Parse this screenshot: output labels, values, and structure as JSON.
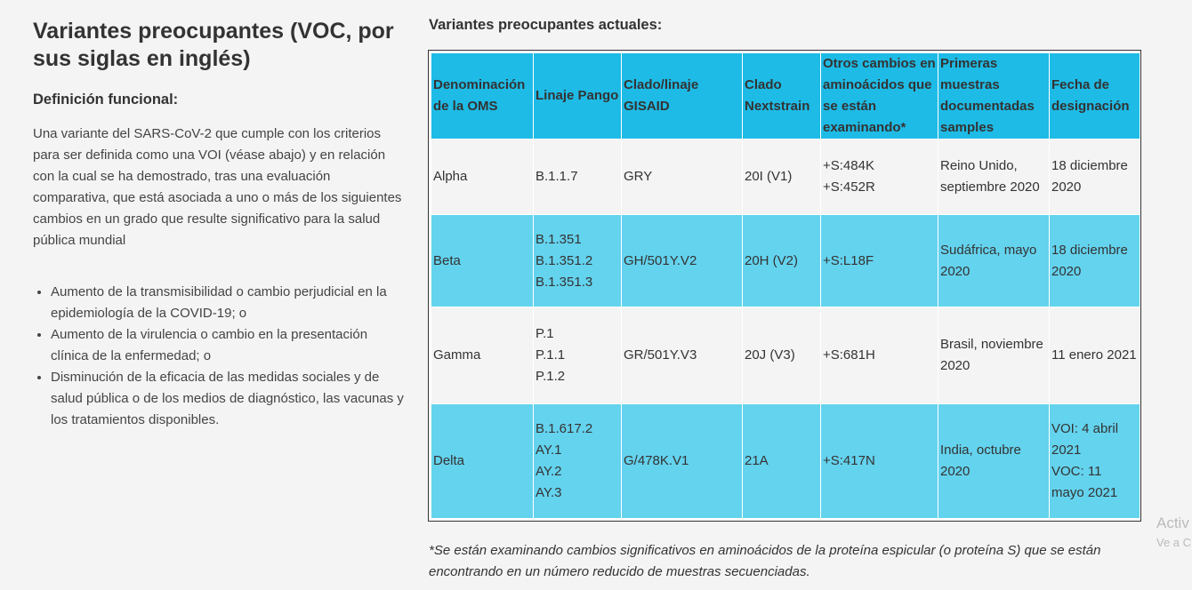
{
  "left": {
    "heading_line1": "Variantes preocupantes (VOC, por",
    "heading_line2": "sus siglas en inglés)",
    "subheading": "Definición funcional:",
    "paragraph": "Una variante del SARS-CoV-2 que cumple con los criterios para ser definida como una VOI (véase abajo) y en relación con la cual se ha demostrado, tras una evaluación comparativa, que está asociada a uno o más de los siguientes cambios en un grado que resulte significativo para la salud pública mundial",
    "bullets": [
      "Aumento de la transmisibilidad o cambio perjudicial en la epidemiología de la COVID-19; o",
      "Aumento de la virulencia o cambio en la presentación clínica de la enfermedad; o",
      "Disminución de la eficacia de las medidas sociales y de salud pública o de los medios de diagnóstico, las vacunas y los tratamientos disponibles."
    ]
  },
  "right": {
    "title": "Variantes preocupantes actuales:",
    "headers": [
      "Denominación de la OMS",
      "Linaje Pango",
      "Clado/linaje GISAID",
      "Clado Nextstrain",
      "Otros cambios en aminoácidos que se están examinando*",
      "Primeras muestras documentadas samples",
      "Fecha de designación"
    ],
    "rows": [
      {
        "name": "Alpha",
        "pango": "B.1.1.7",
        "gisaid": "GRY",
        "nextstrain": "20I (V1)",
        "changes": "+S:484K\n+S:452R",
        "samples": "Reino Unido, septiembre 2020",
        "date": "18 diciembre 2020"
      },
      {
        "name": "Beta",
        "pango": "B.1.351\nB.1.351.2\nB.1.351.3",
        "gisaid": "GH/501Y.V2",
        "nextstrain": "20H (V2)",
        "changes": "+S:L18F",
        "samples": "Sudáfrica, mayo 2020",
        "date": "18 diciembre 2020"
      },
      {
        "name": "Gamma",
        "pango": "P.1\nP.1.1\nP.1.2",
        "gisaid": "GR/501Y.V3",
        "nextstrain": "20J (V3)",
        "changes": "+S:681H",
        "samples": "Brasil, noviembre 2020",
        "date": "11 enero 2021"
      },
      {
        "name": "Delta",
        "pango": "B.1.617.2\nAY.1\nAY.2\nAY.3",
        "gisaid": "G/478K.V1",
        "nextstrain": "21A",
        "changes": "+S:417N",
        "samples": "India, octubre 2020",
        "date": "VOI: 4 abril 2021\nVOC: 11 mayo 2021"
      }
    ],
    "footnote": "*Se están examinando cambios significativos en aminoácidos de la proteína espicular (o proteína S) que se están encontrando en un número reducido de muestras secuenciadas."
  },
  "watermark": {
    "line1": "Activ",
    "line2": "Ve a C"
  }
}
